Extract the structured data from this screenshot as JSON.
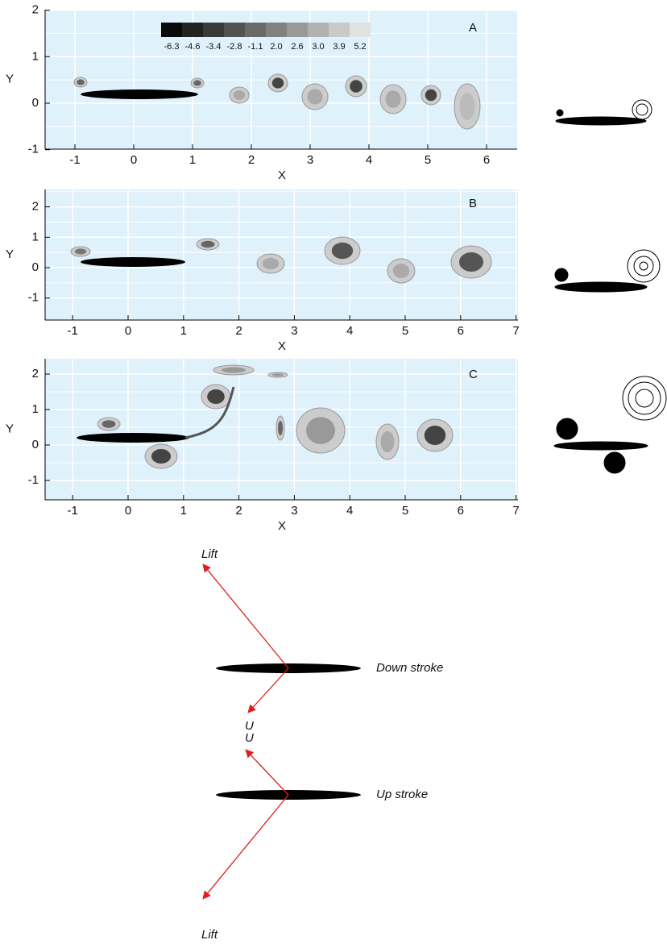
{
  "colorbar": {
    "labels": [
      "-6.3",
      "-4.6",
      "-3.4",
      "-2.8",
      "-1.1",
      "2.0",
      "2.6",
      "3.0",
      "3.9",
      "5.2"
    ]
  },
  "panels": [
    {
      "label": "A",
      "xlabel": "X",
      "ylabel": "Y",
      "xticks": [
        -1,
        0,
        1,
        2,
        3,
        4,
        5,
        6
      ],
      "yticks": [
        -1,
        0,
        1,
        2
      ]
    },
    {
      "label": "B",
      "xlabel": "X",
      "ylabel": "Y",
      "xticks": [
        -1,
        0,
        1,
        2,
        3,
        4,
        5,
        6,
        7
      ],
      "yticks": [
        -1,
        0,
        1,
        2
      ]
    },
    {
      "label": "C",
      "xlabel": "X",
      "ylabel": "Y",
      "xticks": [
        -1,
        0,
        1,
        2,
        3,
        4,
        5,
        6,
        7
      ],
      "yticks": [
        -1,
        0,
        1,
        2
      ]
    }
  ],
  "diagram": {
    "down": {
      "lift": "Lift",
      "u": "U",
      "caption": "Down  stroke"
    },
    "up": {
      "lift": "Lift",
      "u": "U",
      "caption": "Up  stroke"
    }
  }
}
